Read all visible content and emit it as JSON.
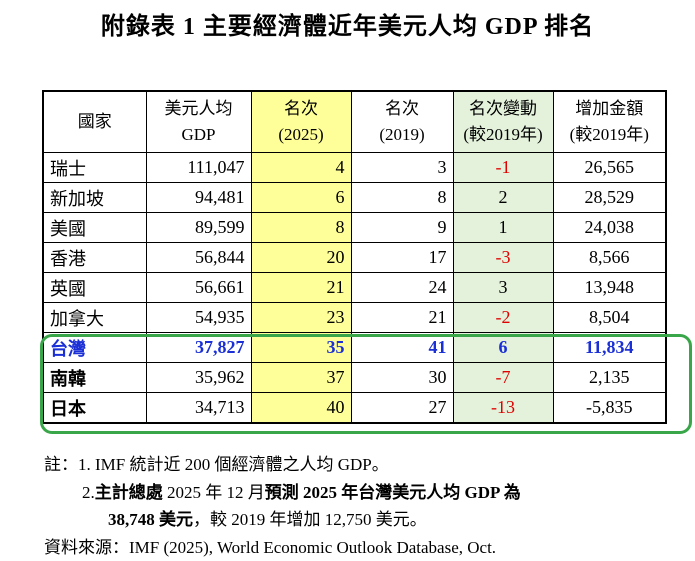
{
  "title": "附錄表 1  主要經濟體近年美元人均 GDP 排名",
  "table": {
    "header": [
      [
        "國家"
      ],
      [
        "美元人均",
        "GDP"
      ],
      [
        "名次",
        "(2025)"
      ],
      [
        "名次",
        "(2019)"
      ],
      [
        "名次變動",
        "(較2019年)"
      ],
      [
        "增加金額",
        "(較2019年)"
      ]
    ],
    "rows": [
      [
        "瑞士",
        "111,047",
        "4",
        "3",
        "-1",
        "26,565"
      ],
      [
        "新加坡",
        "94,481",
        "6",
        "8",
        "2",
        "28,529"
      ],
      [
        "美國",
        "89,599",
        "8",
        "9",
        "1",
        "24,038"
      ],
      [
        "香港",
        "56,844",
        "20",
        "17",
        "-3",
        "8,566"
      ],
      [
        "英國",
        "56,661",
        "21",
        "24",
        "3",
        "13,948"
      ],
      [
        "加拿大",
        "54,935",
        "23",
        "21",
        "-2",
        "8,504"
      ],
      [
        "台灣",
        "37,827",
        "35",
        "41",
        "6",
        "11,834"
      ],
      [
        "南韓",
        "35,962",
        "37",
        "30",
        "-7",
        "2,135"
      ],
      [
        "日本",
        "34,713",
        "40",
        "27",
        "-13",
        "-5,835"
      ]
    ]
  },
  "notes": {
    "label": "註：",
    "item1": "1. IMF 統計近 200 個經濟體之人均 GDP。",
    "item2": [
      [
        {
          "text": "2.",
          "bold": false
        },
        {
          "text": "主計總處",
          "bold": true
        },
        {
          "text": " 2025 年 12 月",
          "bold": false
        },
        {
          "text": "預測 2025 年台灣美元人均 GDP 為",
          "bold": true
        }
      ],
      [
        {
          "text": "38,748 美元",
          "bold": true
        },
        {
          "text": "，較 2019 年增加 12,750 美元。",
          "bold": false
        }
      ]
    ]
  },
  "source": "資料來源：IMF (2025), World Economic Outlook Database, Oct."
}
